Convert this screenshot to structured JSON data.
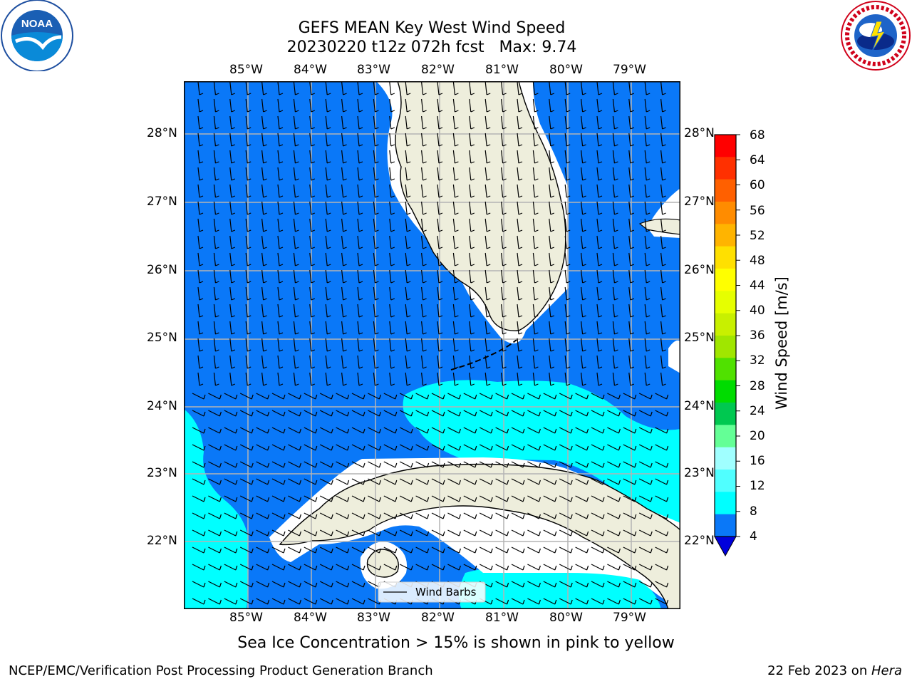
{
  "title": {
    "line1": "GEFS MEAN Key West Wind Speed",
    "line2": "20230220 t12z 072h fcst   Max: 9.74"
  },
  "logos": {
    "left": {
      "icon": "noaa-logo",
      "text": "NOAA",
      "ring_text": "NATIONAL OCEANIC AND ATMOSPHERIC ADMINISTRATION · U.S. DEPARTMENT OF COMMERCE"
    },
    "right": {
      "icon": "nws-logo",
      "ring_text": "NATIONAL WEATHER SERVICE"
    }
  },
  "map": {
    "lon_labels": [
      "85°W",
      "84°W",
      "83°W",
      "82°W",
      "81°W",
      "80°W",
      "79°W"
    ],
    "lat_labels": [
      "28°N",
      "27°N",
      "26°N",
      "25°N",
      "24°N",
      "23°N",
      "22°N"
    ],
    "legend_label": "Wind Barbs",
    "colors": {
      "ocean_4_8": "#0a78f8",
      "ocean_8_12": "#00ffff",
      "land": "#eeeedc",
      "grid": "#b4b4b4"
    }
  },
  "colorbar": {
    "label": "Wind Speed [m/s]",
    "ticks": [
      "68",
      "64",
      "60",
      "56",
      "52",
      "48",
      "44",
      "40",
      "36",
      "32",
      "28",
      "24",
      "20",
      "16",
      "12",
      "8",
      "4"
    ],
    "colors": [
      "#ff0000",
      "#ff3000",
      "#ff6000",
      "#ff8c00",
      "#ffb400",
      "#ffe000",
      "#ffff00",
      "#e6ff00",
      "#c8f000",
      "#a0e600",
      "#50e100",
      "#00dc00",
      "#00c850",
      "#64ff96",
      "#a0ffff",
      "#50ffff",
      "#00ffff",
      "#0a78f8",
      "#0000dc"
    ]
  },
  "caption": "Sea Ice Concentration > 15% is shown in pink to yellow",
  "footer": {
    "left": "NCEP/EMC/Verification Post Processing Product Generation Branch",
    "date": "22 Feb 2023 on ",
    "host": "Hera"
  }
}
